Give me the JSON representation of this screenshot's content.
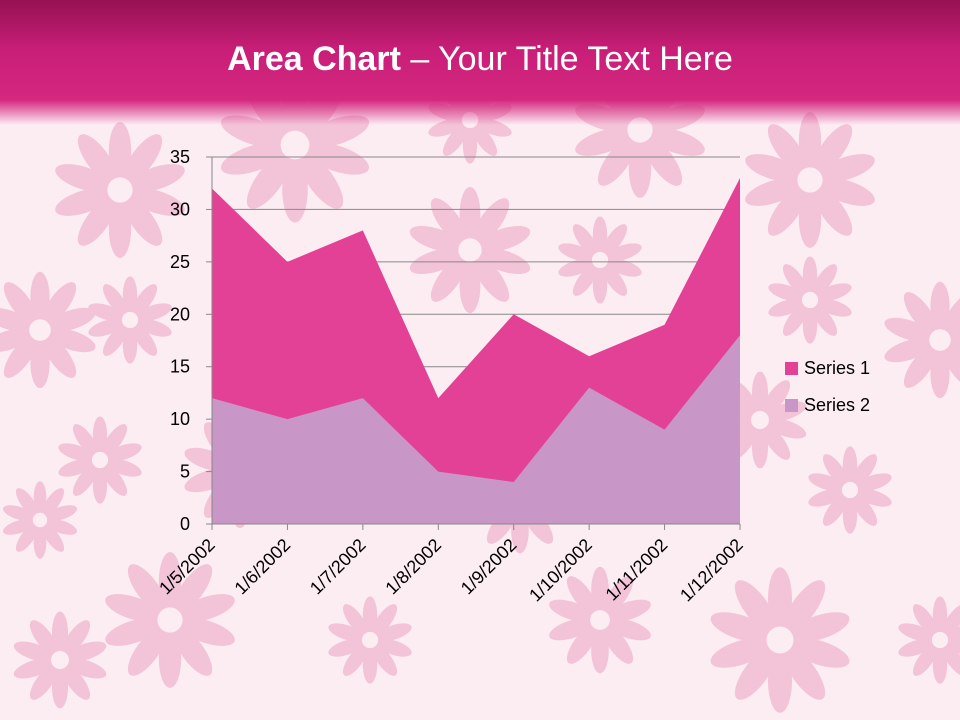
{
  "slide": {
    "title_bold": "Area Chart",
    "title_rest": " – Your Title Text Here"
  },
  "chart_data": {
    "type": "area",
    "stacked": false,
    "categories": [
      "1/5/2002",
      "1/6/2002",
      "1/7/2002",
      "1/8/2002",
      "1/9/2002",
      "1/10/2002",
      "1/11/2002",
      "1/12/2002"
    ],
    "series": [
      {
        "name": "Series 1",
        "values": [
          32,
          25,
          28,
          12,
          20,
          16,
          19,
          33
        ],
        "color": "#e34195"
      },
      {
        "name": "Series 2",
        "values": [
          12,
          10,
          12,
          5,
          4,
          13,
          9,
          18
        ],
        "color": "#c996c8"
      }
    ],
    "ylim": [
      0,
      35
    ],
    "yticks": [
      0,
      5,
      10,
      15,
      20,
      25,
      30,
      35
    ],
    "grid": true,
    "legend": "right",
    "xlabel": "",
    "ylabel": ""
  }
}
